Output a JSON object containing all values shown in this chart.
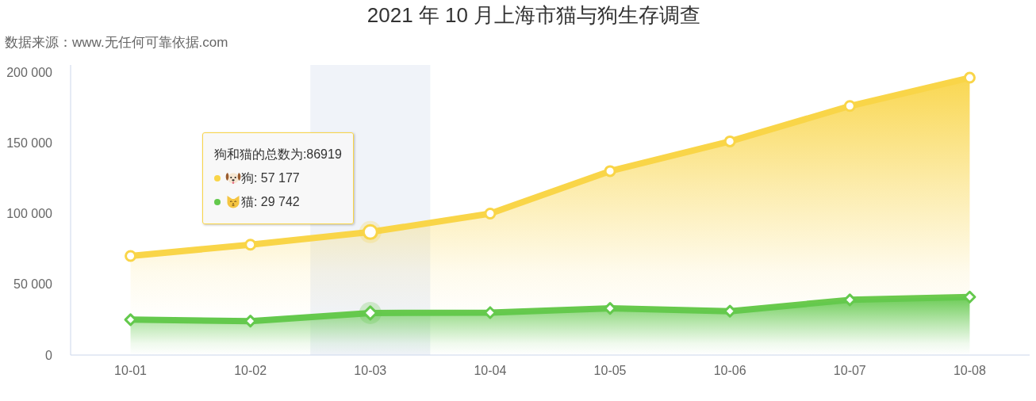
{
  "chart_data": {
    "type": "area",
    "title": "2021 年 10 月上海市猫与狗生存调查",
    "subtitle": "数据来源：www.无任何可靠依据.com",
    "categories": [
      "10-01",
      "10-02",
      "10-03",
      "10-04",
      "10-05",
      "10-06",
      "10-07",
      "10-08"
    ],
    "stacked": true,
    "series": [
      {
        "color": "#64c94d",
        "marker": "diamond",
        "values": [
          25000,
          24000,
          29742,
          30000,
          33000,
          31000,
          39000,
          41000
        ]
      },
      {
        "color": "#f9d548",
        "marker": "circle",
        "values": [
          45000,
          54000,
          57177,
          70000,
          97000,
          120000,
          137000,
          155000
        ]
      }
    ],
    "ylim": [
      0,
      205000
    ],
    "yticks": [
      0,
      {
        "value": 50000,
        "label": "50 000"
      },
      {
        "value": 100000,
        "label": "100 000"
      },
      {
        "value": 150000,
        "label": "150 000"
      },
      {
        "value": 200000,
        "label": "200 000"
      }
    ],
    "bands": [
      {
        "axis": "x",
        "from": "10-03",
        "to": "10-03",
        "color": "#f0f3f9"
      }
    ],
    "annotations": [
      "狗和猫的总数为:86919",
      "狗: 57 177",
      "猫: 29 742"
    ]
  }
}
